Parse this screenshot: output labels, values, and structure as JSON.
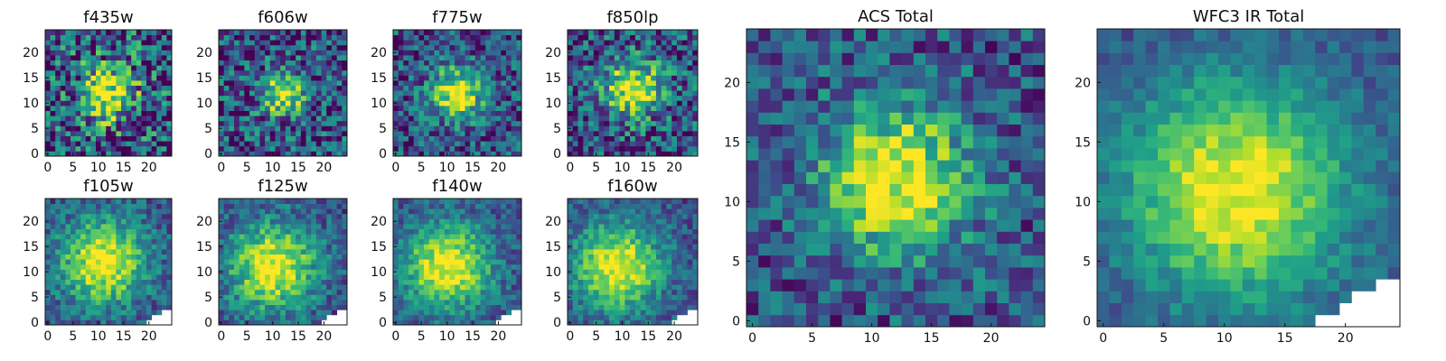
{
  "figure": {
    "colormap": "viridis"
  },
  "chart_data": [
    {
      "type": "heatmap",
      "title": "f435w",
      "xlim": [
        0,
        24
      ],
      "ylim": [
        0,
        24
      ],
      "xticks": [
        0,
        5,
        10,
        15,
        20
      ],
      "yticks": [
        0,
        5,
        10,
        15,
        20
      ],
      "peak": [
        12,
        12
      ],
      "sigma": 4.0,
      "noise": 0.45,
      "missing_corner": 0
    },
    {
      "type": "heatmap",
      "title": "f606w",
      "xlim": [
        0,
        24
      ],
      "ylim": [
        0,
        24
      ],
      "xticks": [
        0,
        5,
        10,
        15,
        20
      ],
      "yticks": [
        0,
        5,
        10,
        15,
        20
      ],
      "peak": [
        12,
        12
      ],
      "sigma": 3.0,
      "noise": 0.35,
      "missing_corner": 0
    },
    {
      "type": "heatmap",
      "title": "f775w",
      "xlim": [
        0,
        24
      ],
      "ylim": [
        0,
        24
      ],
      "xticks": [
        0,
        5,
        10,
        15,
        20
      ],
      "yticks": [
        0,
        5,
        10,
        15,
        20
      ],
      "peak": [
        12,
        12
      ],
      "sigma": 3.5,
      "noise": 0.3,
      "missing_corner": 0
    },
    {
      "type": "heatmap",
      "title": "f850lp",
      "xlim": [
        0,
        24
      ],
      "ylim": [
        0,
        24
      ],
      "xticks": [
        0,
        5,
        10,
        15,
        20
      ],
      "yticks": [
        0,
        5,
        10,
        15,
        20
      ],
      "peak": [
        12,
        13
      ],
      "sigma": 4.0,
      "noise": 0.35,
      "missing_corner": 0
    },
    {
      "type": "heatmap",
      "title": "f105w",
      "xlim": [
        0,
        24
      ],
      "ylim": [
        0,
        24
      ],
      "xticks": [
        0,
        5,
        10,
        15,
        20
      ],
      "yticks": [
        0,
        5,
        10,
        15,
        20
      ],
      "peak": [
        11,
        12
      ],
      "sigma": 6.0,
      "noise": 0.2,
      "missing_corner": 3
    },
    {
      "type": "heatmap",
      "title": "f125w",
      "xlim": [
        0,
        24
      ],
      "ylim": [
        0,
        24
      ],
      "xticks": [
        0,
        5,
        10,
        15,
        20
      ],
      "yticks": [
        0,
        5,
        10,
        15,
        20
      ],
      "peak": [
        10,
        11
      ],
      "sigma": 6.0,
      "noise": 0.2,
      "missing_corner": 3
    },
    {
      "type": "heatmap",
      "title": "f140w",
      "xlim": [
        0,
        24
      ],
      "ylim": [
        0,
        24
      ],
      "xticks": [
        0,
        5,
        10,
        15,
        20
      ],
      "yticks": [
        0,
        5,
        10,
        15,
        20
      ],
      "peak": [
        10,
        11
      ],
      "sigma": 6.0,
      "noise": 0.18,
      "missing_corner": 3
    },
    {
      "type": "heatmap",
      "title": "f160w",
      "xlim": [
        0,
        24
      ],
      "ylim": [
        0,
        24
      ],
      "xticks": [
        0,
        5,
        10,
        15,
        20
      ],
      "yticks": [
        0,
        5,
        10,
        15,
        20
      ],
      "peak": [
        9,
        11
      ],
      "sigma": 6.0,
      "noise": 0.18,
      "missing_corner": 3
    },
    {
      "type": "heatmap",
      "title": "ACS Total",
      "xlim": [
        0,
        24
      ],
      "ylim": [
        0,
        24
      ],
      "xticks": [
        0,
        5,
        10,
        15,
        20
      ],
      "yticks": [
        0,
        5,
        10,
        15,
        20
      ],
      "peak": [
        12,
        12
      ],
      "sigma": 4.5,
      "noise": 0.25,
      "missing_corner": 0
    },
    {
      "type": "heatmap",
      "title": "WFC3 IR Total",
      "xlim": [
        0,
        24
      ],
      "ylim": [
        0,
        24
      ],
      "xticks": [
        0,
        5,
        10,
        15,
        20
      ],
      "yticks": [
        0,
        5,
        10,
        15,
        20
      ],
      "peak": [
        11,
        11
      ],
      "sigma": 6.5,
      "noise": 0.12,
      "missing_corner": 4
    }
  ]
}
